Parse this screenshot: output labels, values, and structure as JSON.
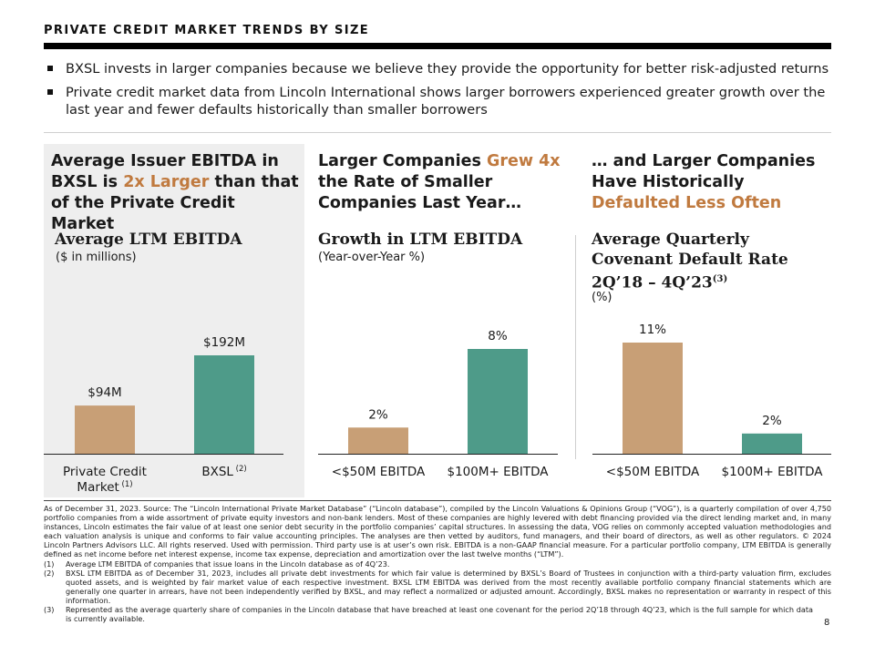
{
  "page": {
    "title": "PRIVATE CREDIT MARKET TRENDS BY SIZE",
    "page_number": "8"
  },
  "bullets": [
    "BXSL invests in larger companies because we believe they provide the opportunity for better risk-adjusted returns",
    "Private credit market data from Lincoln International shows larger borrowers experienced greater growth over the last year and fewer defaults historically than smaller borrowers"
  ],
  "panels": {
    "p1": {
      "heading_a": "Average Issuer EBITDA in BXSL is ",
      "heading_accent": "2x Larger",
      "heading_b": " than that of the Private Credit Market",
      "subtitle": "Average LTM EBITDA",
      "unit": "($ in millions)",
      "cat1_note": "(1)",
      "cat2_note": "(2)"
    },
    "p2": {
      "heading_a": "Larger Companies ",
      "heading_accent": "Grew 4x",
      "heading_b": " the Rate of Smaller Companies Last Year…",
      "subtitle": "Growth in LTM EBITDA",
      "unit": "(Year-over-Year %)"
    },
    "p3": {
      "heading_a": "… and Larger Companies Have Historically ",
      "heading_accent": "Defaulted Less Often",
      "heading_b": "",
      "subtitle_a": "Average Quarterly Covenant Default Rate 2Q’18 – 4Q’23",
      "subtitle_sup": "(3)",
      "unit": "(%)"
    }
  },
  "colors": {
    "tan": "#c89f76",
    "teal": "#4e9b89",
    "accent": "#c07a3f"
  },
  "chart_data": [
    {
      "type": "bar",
      "categories": [
        "Private Credit Market",
        "BXSL"
      ],
      "values": [
        94,
        192
      ],
      "labels": [
        "$94M",
        "$192M"
      ],
      "ylabel": "($ in millions)",
      "title": "Average LTM EBITDA"
    },
    {
      "type": "bar",
      "categories": [
        "<$50M EBITDA",
        "$100M+ EBITDA"
      ],
      "values": [
        2,
        8
      ],
      "labels": [
        "2%",
        "8%"
      ],
      "ylabel": "(Year-over-Year %)",
      "title": "Growth in LTM EBITDA"
    },
    {
      "type": "bar",
      "categories": [
        "<$50M EBITDA",
        "$100M+ EBITDA"
      ],
      "values": [
        11,
        2
      ],
      "labels": [
        "11%",
        "2%"
      ],
      "ylabel": "(%)",
      "title": "Average Quarterly Covenant Default Rate 2Q’18 – 4Q’23"
    }
  ],
  "footer": {
    "source": "As of December 31, 2023. Source: The “Lincoln International Private Market Database” (“Lincoln database”), compiled by the Lincoln Valuations & Opinions Group (“VOG”), is a quarterly compilation of over 4,750 portfolio companies from a wide assortment of private equity investors and non-bank lenders. Most of these companies are highly levered with debt financing provided via the direct lending market and, in many instances, Lincoln estimates the fair value of at least one senior debt security in the portfolio companies’ capital structures. In assessing the data, VOG relies on commonly accepted valuation methodologies and each valuation analysis is unique and conforms to fair value accounting principles. The analyses are then vetted by auditors, fund managers, and their board of directors, as well as other regulators. © 2024 Lincoln Partners Advisors LLC. All rights reserved. Used with permission. Third party use is at user’s own risk. EBITDA is a non-GAAP financial measure. For a particular portfolio company, LTM EBITDA is generally defined as net income before net interest expense, income tax expense, depreciation and amortization over the last twelve months (“LTM”).",
    "notes": [
      {
        "num": "(1)",
        "text": "Average LTM EBITDA of companies that issue loans in the Lincoln database as of 4Q’23."
      },
      {
        "num": "(2)",
        "text": "BXSL LTM EBITDA as of December 31, 2023, includes all private debt investments for which fair value is determined by BXSL’s Board of Trustees in conjunction with a third-party valuation firm, excludes quoted assets, and is weighted by fair market value of each respective investment. BXSL LTM EBITDA was derived from the most recently available portfolio company financial statements which are generally one quarter in arrears, have not been independently verified by BXSL, and may reflect a normalized or adjusted amount. Accordingly, BXSL makes no representation or warranty in respect of this information."
      },
      {
        "num": "(3)",
        "text": "Represented as the average quarterly share of companies in the Lincoln database that have breached at least one covenant for the period 2Q’18 through 4Q’23, which is the full sample for which data is currently available."
      }
    ]
  }
}
